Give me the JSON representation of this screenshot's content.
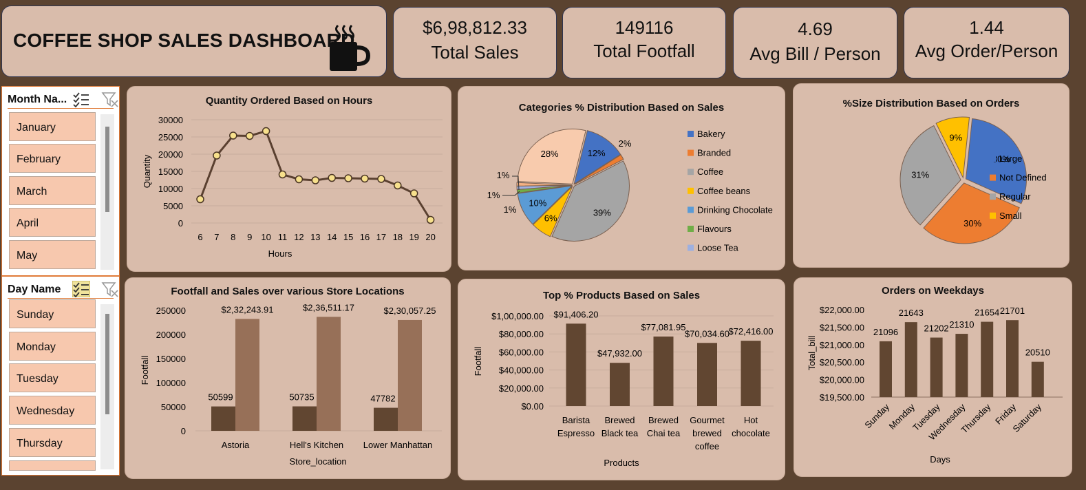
{
  "header": {
    "title": "COFFEE SHOP SALES DASHBOARD",
    "icon": "coffee-cup-icon"
  },
  "kpis": [
    {
      "value": "$6,98,812.33",
      "label": "Total Sales"
    },
    {
      "value": "149116",
      "label": "Total Footfall"
    },
    {
      "value": "4.69",
      "label": "Avg Bill / Person"
    },
    {
      "value": "1.44",
      "label": "Avg Order/Person"
    }
  ],
  "month_slicer": {
    "title": "Month Na...",
    "items": [
      "January",
      "February",
      "March",
      "April",
      "May"
    ]
  },
  "day_slicer": {
    "title": "Day Name",
    "items": [
      "Sunday",
      "Monday",
      "Tuesday",
      "Wednesday",
      "Thursday"
    ]
  },
  "colors": {
    "background": "#5b4330",
    "panel": "#d9bcab",
    "line": "#5a4030",
    "bar_dark": "#614631",
    "bar_light": "#977058",
    "slicer_item": "#f7c8ae",
    "slicer_border": "#e07a37"
  },
  "chart_data": [
    {
      "id": "hours",
      "type": "line",
      "title": "Quantity Ordered Based on Hours",
      "xlabel": "Hours",
      "ylabel": "Quantity",
      "x": [
        "6",
        "7",
        "8",
        "9",
        "10",
        "11",
        "12",
        "13",
        "14",
        "15",
        "16",
        "17",
        "18",
        "19",
        "20"
      ],
      "values": [
        6900,
        19600,
        25400,
        25300,
        26700,
        14100,
        12700,
        12400,
        13100,
        13000,
        12900,
        12800,
        10900,
        8600,
        900
      ],
      "yticks": [
        "30000",
        "25000",
        "20000",
        "15000",
        "10000",
        "5000",
        "0"
      ],
      "ylim": [
        0,
        30000
      ],
      "grid": true
    },
    {
      "id": "categories",
      "type": "pie",
      "title": "Categories % Distribution Based on Sales",
      "legend": [
        "Bakery",
        "Branded",
        "Coffee",
        "Coffee beans",
        "Drinking Chocolate",
        "Flavours",
        "Loose Tea"
      ],
      "slices": [
        {
          "name": "Bakery",
          "value": 12,
          "label": "12%",
          "color": "#4472c4"
        },
        {
          "name": "Branded",
          "value": 1.5,
          "label": "2%",
          "color": "#ed7d31"
        },
        {
          "name": "Coffee",
          "value": 39,
          "label": "39%",
          "color": "#a5a5a5"
        },
        {
          "name": "Coffee beans",
          "value": 6,
          "label": "6%",
          "color": "#ffc000"
        },
        {
          "name": "Drinking Chocolate",
          "value": 10,
          "label": "10%",
          "color": "#5b9bd5"
        },
        {
          "name": "Flavours",
          "value": 1,
          "label": "1%",
          "color": "#70ad47"
        },
        {
          "name": "Loose Tea",
          "value": 1,
          "label": "1%",
          "color": "#9eb0e0"
        },
        {
          "name": "",
          "value": 1,
          "label": "1%",
          "color": "#f4b183"
        },
        {
          "name": "",
          "value": 28,
          "label": "28%",
          "color": "#f8cbad"
        }
      ],
      "legend_position": "right"
    },
    {
      "id": "sizes",
      "type": "pie",
      "title": "%Size Distribution Based on Orders",
      "legend": [
        "Large",
        "Not Defined",
        "Regular",
        "Small"
      ],
      "slices": [
        {
          "name": "Large",
          "value": 30,
          "label": "30%",
          "color": "#4472c4"
        },
        {
          "name": "Not Defined",
          "value": 30,
          "label": "30%",
          "color": "#ed7d31"
        },
        {
          "name": "Regular",
          "value": 31,
          "label": "31%",
          "color": "#a5a5a5"
        },
        {
          "name": "Small",
          "value": 9,
          "label": "9%",
          "color": "#ffc000"
        }
      ],
      "legend_position": "right"
    },
    {
      "id": "stores",
      "type": "bar",
      "title": "Footfall and Sales over various Store Locations",
      "xlabel": "Store_location",
      "ylabel": "Footfall",
      "categories": [
        "Astoria",
        "Hell's Kitchen",
        "Lower Manhattan"
      ],
      "series": [
        {
          "values": [
            50599,
            50735,
            47782
          ],
          "labels": [
            "50599",
            "50735",
            "47782"
          ],
          "color": "#614631"
        },
        {
          "values": [
            232243.91,
            236511.17,
            230057.25
          ],
          "labels": [
            "$2,32,243.91",
            "$2,36,511.17",
            "$2,30,057.25"
          ],
          "color": "#977058"
        }
      ],
      "yticks": [
        "250000",
        "200000",
        "150000",
        "100000",
        "50000",
        "0"
      ],
      "ylim": [
        0,
        250000
      ]
    },
    {
      "id": "products",
      "type": "bar",
      "title": "Top % Products Based on Sales",
      "xlabel": "Products",
      "ylabel": "Footfall",
      "categories": [
        [
          "Barista",
          "Espresso"
        ],
        [
          "Brewed",
          "Black tea"
        ],
        [
          "Brewed",
          "Chai tea"
        ],
        [
          "Gourmet",
          "brewed",
          "coffee"
        ],
        [
          "Hot",
          "chocolate"
        ]
      ],
      "values": [
        91406.2,
        47932.0,
        77081.95,
        70034.6,
        72416.0
      ],
      "labels": [
        "$91,406.20",
        "$47,932.00",
        "$77,081.95",
        "$70,034.60",
        "$72,416.00"
      ],
      "yticks": [
        "$1,00,000.00",
        "$80,000.00",
        "$60,000.00",
        "$40,000.00",
        "$20,000.00",
        "$0.00"
      ],
      "ylim": [
        0,
        100000
      ]
    },
    {
      "id": "weekdays",
      "type": "bar",
      "title": "Orders on Weekdays",
      "xlabel": "Days",
      "ylabel": "Total_bill",
      "categories": [
        "Sunday",
        "Monday",
        "Tuesday",
        "Wednesday",
        "Thursday",
        "Friday",
        "Saturday"
      ],
      "values": [
        21096,
        21643,
        21202,
        21310,
        21654,
        21701,
        20510
      ],
      "labels": [
        "21096",
        "21643",
        "21202",
        "21310",
        "21654",
        "21701",
        "20510"
      ],
      "yticks": [
        "$22,000.00",
        "$21,500.00",
        "$21,000.00",
        "$20,500.00",
        "$20,000.00",
        "$19,500.00"
      ],
      "ylim": [
        19500,
        22000
      ]
    }
  ]
}
